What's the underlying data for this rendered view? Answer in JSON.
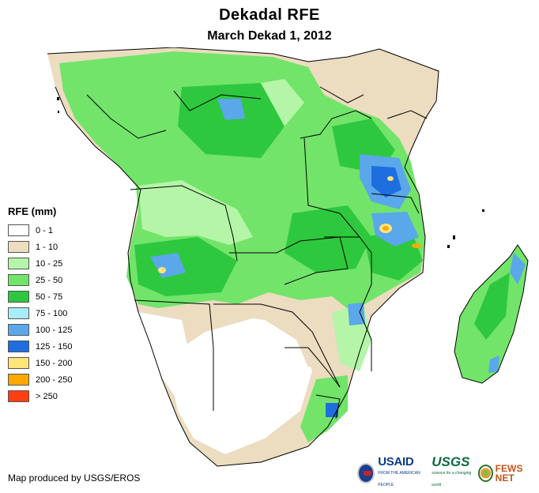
{
  "title": "Dekadal RFE",
  "subtitle": "March Dekad 1, 2012",
  "legend": {
    "title": "RFE (mm)",
    "items": [
      {
        "label": "0 - 1",
        "color": "#ffffff"
      },
      {
        "label": "1 - 10",
        "color": "#ecdcc0"
      },
      {
        "label": "10 - 25",
        "color": "#b4f5a8"
      },
      {
        "label": "25 - 50",
        "color": "#72e46a"
      },
      {
        "label": "50 - 75",
        "color": "#2ec83e"
      },
      {
        "label": "75 - 100",
        "color": "#a8ecf8"
      },
      {
        "label": "100 - 125",
        "color": "#5aa7ea"
      },
      {
        "label": "125 - 150",
        "color": "#1e6ee0"
      },
      {
        "label": "150 - 200",
        "color": "#ffe47a"
      },
      {
        "label": "200 - 250",
        "color": "#ffa800"
      },
      {
        "label": "> 250",
        "color": "#ff3e12"
      }
    ]
  },
  "credit": "Map produced by USGS/EROS",
  "logos": {
    "usaid": "USAID",
    "usaid_tagline": "FROM THE AMERICAN PEOPLE",
    "usgs": "USGS",
    "usgs_tagline": "science for a changing world",
    "fews": "FEWS NET"
  }
}
